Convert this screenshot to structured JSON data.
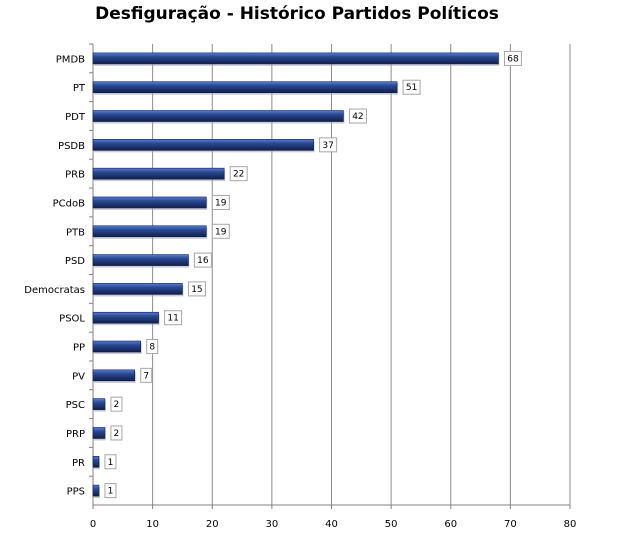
{
  "chart_data": {
    "type": "bar",
    "orientation": "horizontal",
    "title": "Desfiguração - Histórico Partidos Políticos",
    "xlabel": "",
    "ylabel": "",
    "categories": [
      "PMDB",
      "PT",
      "PDT",
      "PSDB",
      "PRB",
      "PCdoB",
      "PTB",
      "PSD",
      "Democratas",
      "PSOL",
      "PP",
      "PV",
      "PSC",
      "PRP",
      "PR",
      "PPS"
    ],
    "values": [
      68,
      51,
      42,
      37,
      22,
      19,
      19,
      16,
      15,
      11,
      8,
      7,
      2,
      2,
      1,
      1
    ],
    "xlim": [
      0,
      80
    ],
    "xticks": [
      "0",
      "10",
      "20",
      "30",
      "40",
      "50",
      "60",
      "70",
      "80"
    ],
    "grid": "vertical",
    "legend": "none",
    "data_labels": true,
    "colors": {
      "bar": "#1f3a7a",
      "bar_light": "#3e63b8",
      "bar_dark": "#0f1f4d",
      "grid": "#8c8c8c"
    }
  }
}
